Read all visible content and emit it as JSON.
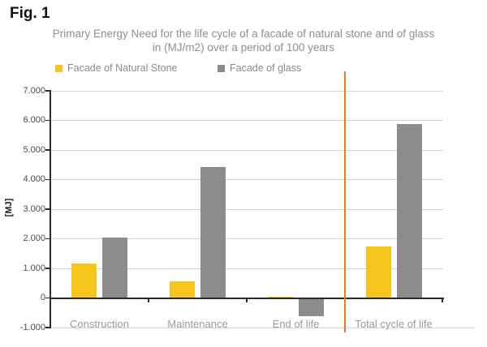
{
  "figure_label": "Fig. 1",
  "chart_data": {
    "type": "bar",
    "title": "Primary Energy Need for the life cycle of a facade of natural stone and of glass in (MJ/m2) over a period of 100 years",
    "title_lines": [
      "Primary Energy Need for the life cycle of a facade of natural stone and of glass",
      "in (MJ/m2) over a period of 100 years"
    ],
    "categories": [
      "Construction",
      "Maintenance",
      "End of life",
      "Total cycle of life"
    ],
    "series": [
      {
        "name": "Facade of Natural Stone",
        "color": "#F5C51B",
        "values": [
          1170,
          550,
          30,
          1750
        ]
      },
      {
        "name": "Facade of glass",
        "color": "#8C8C8C",
        "values": [
          2050,
          4420,
          -600,
          5870
        ]
      }
    ],
    "xlabel": "",
    "ylabel": "[MJ]",
    "ylim": [
      -1000,
      7000
    ],
    "yticks": [
      -1000,
      0,
      1000,
      2000,
      3000,
      4000,
      5000,
      6000,
      7000
    ],
    "ytick_labels": [
      "-1.000",
      "0",
      "1.000",
      "2.000",
      "3.000",
      "4.000",
      "5.000",
      "6.000",
      "7.000"
    ],
    "grid": true,
    "legend_position": "top-left",
    "separator": {
      "type": "vertical-line",
      "color": "#E97826",
      "position": "between End of life and Total cycle of life"
    }
  }
}
